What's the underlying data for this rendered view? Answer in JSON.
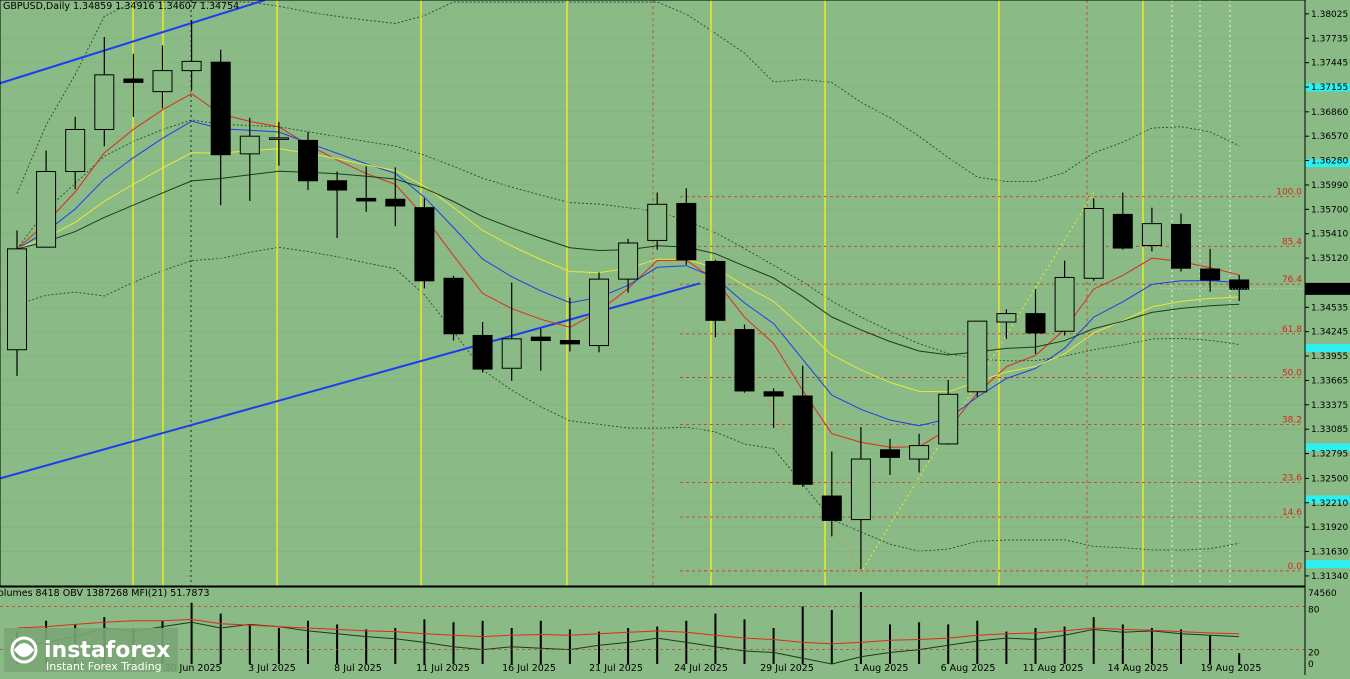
{
  "header": {
    "symbol_text": "GBPUSD,Daily  1.34859  1.34916  1.34607  1.34754",
    "indicator_text": "olumes 8418   OBV 1387268   MFI(21) 51.7873"
  },
  "logo": {
    "name": "instaforex",
    "tagline": "Instant Forex Trading"
  },
  "colors": {
    "background": "#8aba85",
    "bull_fill": "#8aba85",
    "bear_fill": "#000000",
    "ema_red": "#e02b1a",
    "ema_blue": "#1e3df0",
    "ema_yellow": "#e8e83a",
    "ema_dark": "#1c3a1c",
    "trendline": "#1e3df0",
    "vline": "#f2ee1c",
    "fib": "#d23a2a",
    "cyan_marker": "#2ff0f0"
  },
  "chart_data": {
    "type": "candlestick",
    "symbol": "GBPUSD",
    "timeframe": "Daily",
    "ylim": [
      1.3122,
      1.3819
    ],
    "y_ticks": [
      "1.38025",
      "1.37735",
      "1.37445",
      "1.37155",
      "1.36860",
      "1.36570",
      "1.36280",
      "1.35990",
      "1.35700",
      "1.35410",
      "1.35120",
      "1.34825",
      "1.34535",
      "1.34245",
      "1.33955",
      "1.33665",
      "1.33375",
      "1.33085",
      "1.32795",
      "1.32500",
      "1.32210",
      "1.31920",
      "1.31630",
      "1.31340"
    ],
    "x_ticks": [
      "30 Jun 2025",
      "3 Jul 2025",
      "8 Jul 2025",
      "11 Jul 2025",
      "16 Jul 2025",
      "21 Jul 2025",
      "24 Jul 2025",
      "29 Jul 2025",
      "1 Aug 2025",
      "6 Aug 2025",
      "11 Aug 2025",
      "14 Aug 2025",
      "19 Aug 2025"
    ],
    "current_price": "1.34754",
    "candles": [
      {
        "o": 1.3403,
        "h": 1.3545,
        "l": 1.3372,
        "c": 1.3523
      },
      {
        "o": 1.3525,
        "h": 1.364,
        "l": 1.3525,
        "c": 1.3615
      },
      {
        "o": 1.3615,
        "h": 1.368,
        "l": 1.3594,
        "c": 1.3665
      },
      {
        "o": 1.3665,
        "h": 1.3775,
        "l": 1.3645,
        "c": 1.373
      },
      {
        "o": 1.3725,
        "h": 1.3755,
        "l": 1.368,
        "c": 1.3721
      },
      {
        "o": 1.371,
        "h": 1.3765,
        "l": 1.369,
        "c": 1.3735
      },
      {
        "o": 1.3735,
        "h": 1.3795,
        "l": 1.3712,
        "c": 1.3746
      },
      {
        "o": 1.3745,
        "h": 1.376,
        "l": 1.3575,
        "c": 1.3635
      },
      {
        "o": 1.3636,
        "h": 1.3679,
        "l": 1.358,
        "c": 1.3657
      },
      {
        "o": 1.3655,
        "h": 1.3674,
        "l": 1.3622,
        "c": 1.3655
      },
      {
        "o": 1.3652,
        "h": 1.3662,
        "l": 1.3593,
        "c": 1.3604
      },
      {
        "o": 1.3604,
        "h": 1.3615,
        "l": 1.3536,
        "c": 1.3593
      },
      {
        "o": 1.3583,
        "h": 1.3621,
        "l": 1.3567,
        "c": 1.358
      },
      {
        "o": 1.3582,
        "h": 1.362,
        "l": 1.355,
        "c": 1.3574
      },
      {
        "o": 1.3572,
        "h": 1.3583,
        "l": 1.3476,
        "c": 1.3485
      },
      {
        "o": 1.3488,
        "h": 1.3491,
        "l": 1.3414,
        "c": 1.3422
      },
      {
        "o": 1.342,
        "h": 1.3436,
        "l": 1.3376,
        "c": 1.338
      },
      {
        "o": 1.3381,
        "h": 1.3483,
        "l": 1.3366,
        "c": 1.3416
      },
      {
        "o": 1.3418,
        "h": 1.3428,
        "l": 1.3378,
        "c": 1.3414
      },
      {
        "o": 1.3414,
        "h": 1.3465,
        "l": 1.3401,
        "c": 1.341
      },
      {
        "o": 1.3408,
        "h": 1.3495,
        "l": 1.34,
        "c": 1.3487
      },
      {
        "o": 1.3487,
        "h": 1.3535,
        "l": 1.3471,
        "c": 1.353
      },
      {
        "o": 1.3533,
        "h": 1.359,
        "l": 1.3522,
        "c": 1.3576
      },
      {
        "o": 1.3577,
        "h": 1.3595,
        "l": 1.3504,
        "c": 1.351
      },
      {
        "o": 1.3508,
        "h": 1.351,
        "l": 1.3418,
        "c": 1.3438
      },
      {
        "o": 1.3427,
        "h": 1.3433,
        "l": 1.3352,
        "c": 1.3354
      },
      {
        "o": 1.3353,
        "h": 1.3357,
        "l": 1.331,
        "c": 1.3348
      },
      {
        "o": 1.3348,
        "h": 1.3384,
        "l": 1.324,
        "c": 1.3243
      },
      {
        "o": 1.3229,
        "h": 1.3282,
        "l": 1.3181,
        "c": 1.32
      },
      {
        "o": 1.3201,
        "h": 1.3311,
        "l": 1.3142,
        "c": 1.3273
      },
      {
        "o": 1.3284,
        "h": 1.3297,
        "l": 1.3254,
        "c": 1.3275
      },
      {
        "o": 1.3273,
        "h": 1.3303,
        "l": 1.3257,
        "c": 1.3289
      },
      {
        "o": 1.3291,
        "h": 1.3367,
        "l": 1.329,
        "c": 1.335
      },
      {
        "o": 1.3353,
        "h": 1.3437,
        "l": 1.3347,
        "c": 1.3437
      },
      {
        "o": 1.3436,
        "h": 1.3451,
        "l": 1.3416,
        "c": 1.3446
      },
      {
        "o": 1.3446,
        "h": 1.3475,
        "l": 1.3398,
        "c": 1.3423
      },
      {
        "o": 1.3425,
        "h": 1.3509,
        "l": 1.342,
        "c": 1.3489
      },
      {
        "o": 1.3488,
        "h": 1.3583,
        "l": 1.3485,
        "c": 1.3571
      },
      {
        "o": 1.3564,
        "h": 1.359,
        "l": 1.3522,
        "c": 1.3524
      },
      {
        "o": 1.3527,
        "h": 1.3572,
        "l": 1.352,
        "c": 1.3553
      },
      {
        "o": 1.3552,
        "h": 1.3565,
        "l": 1.3496,
        "c": 1.35
      },
      {
        "o": 1.3499,
        "h": 1.3523,
        "l": 1.3472,
        "c": 1.3486
      },
      {
        "o": 1.3486,
        "h": 1.3492,
        "l": 1.3461,
        "c": 1.3475
      }
    ],
    "fib_levels": [
      {
        "label": "100.0",
        "price": 1.3585
      },
      {
        "label": "85.4",
        "price": 1.3526
      },
      {
        "label": "76.4",
        "price": 1.3481
      },
      {
        "label": "61.8",
        "price": 1.3422
      },
      {
        "label": "50.0",
        "price": 1.337
      },
      {
        "label": "38.2",
        "price": 1.3314
      },
      {
        "label": "23.6",
        "price": 1.3245
      },
      {
        "label": "14.6",
        "price": 1.3204
      },
      {
        "label": "0.0",
        "price": 1.314
      }
    ],
    "volume_axis": [
      "74560",
      "80",
      "20",
      "0"
    ]
  }
}
